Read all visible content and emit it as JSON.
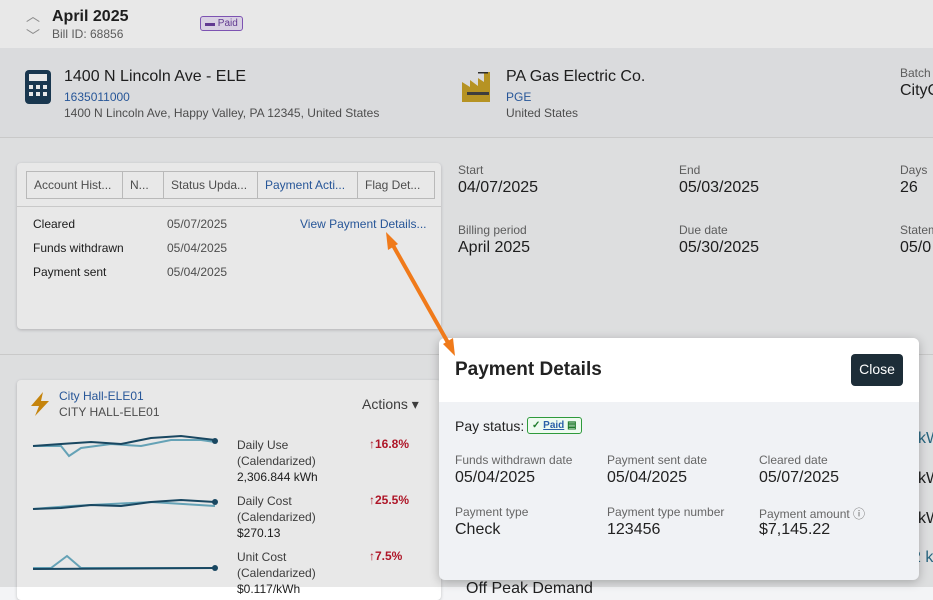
{
  "header": {
    "title": "April 2025",
    "bill_id": "Bill ID: 68856",
    "badge": "Paid"
  },
  "account": {
    "name": "1400 N Lincoln Ave - ELE",
    "number": "1635011000",
    "address": "1400 N Lincoln Ave, Happy Valley, PA 12345, United States"
  },
  "vendor": {
    "name": "PA Gas Electric Co.",
    "code": "PGE",
    "country": "United States"
  },
  "batch": {
    "label": "Batch",
    "value": "CityC"
  },
  "tabs": [
    "Account Hist...",
    "N...",
    "Status Upda...",
    "Payment Acti...",
    "Flag Det..."
  ],
  "status_rows": [
    [
      "Cleared",
      "05/07/2025",
      "View Payment Details..."
    ],
    [
      "Funds withdrawn",
      "05/04/2025"
    ],
    [
      "Payment sent",
      "05/04/2025"
    ]
  ],
  "bill_fields": [
    {
      "label": "Start",
      "value": "04/07/2025"
    },
    {
      "label": "End",
      "value": "05/03/2025"
    },
    {
      "label": "Days",
      "value": "26"
    },
    {
      "label": "Billing period",
      "value": "April 2025"
    },
    {
      "label": "Due date",
      "value": "05/30/2025"
    },
    {
      "label": "Statem",
      "value": "05/0"
    }
  ],
  "meter": {
    "name": "City Hall-ELE01",
    "code": "CITY HALL-ELE01",
    "actions": "Actions",
    "metrics": [
      {
        "label": "Daily Use",
        "sub": "(Calendarized)",
        "value": "2,306.844 kWh",
        "change": "16.8%"
      },
      {
        "label": "Daily Cost",
        "sub": "(Calendarized)",
        "value": "$270.13",
        "change": "25.5%"
      },
      {
        "label": "Unit Cost",
        "sub": "(Calendarized)",
        "value": "$0.117/kWh",
        "change": "7.5%"
      }
    ],
    "edge": [
      "kW",
      "kW",
      "kW",
      "2 k"
    ],
    "next": "Off Peak Demand"
  },
  "modal": {
    "title": "Payment Details",
    "close": "Close",
    "status_label": "Pay status:",
    "status": "Paid",
    "fields": [
      {
        "label": "Funds withdrawn date",
        "value": "05/04/2025"
      },
      {
        "label": "Payment sent date",
        "value": "05/04/2025"
      },
      {
        "label": "Cleared date",
        "value": "05/07/2025"
      },
      {
        "label": "Payment type",
        "value": "Check"
      },
      {
        "label": "Payment type number",
        "value": "123456"
      },
      {
        "label": "Payment amount",
        "value": "$7,145.22"
      }
    ]
  }
}
